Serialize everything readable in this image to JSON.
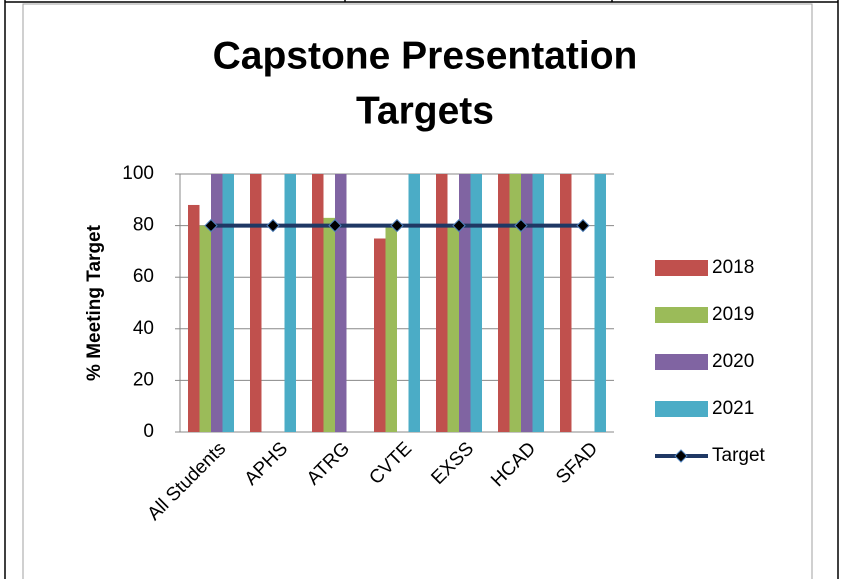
{
  "chart_data": {
    "type": "bar",
    "title": [
      "Capstone Presentation",
      "Targets"
    ],
    "y_label": "% Meeting Target",
    "categories": [
      "All Students",
      "APHS",
      "ATRG",
      "CVTE",
      "EXSS",
      "HCAD",
      "SFAD"
    ],
    "series": [
      {
        "name": "2018",
        "color": "#c0504d",
        "values": [
          88,
          100,
          100,
          75,
          100,
          100,
          100
        ]
      },
      {
        "name": "2019",
        "color": "#9bbb59",
        "values": [
          80,
          null,
          83,
          80,
          80,
          100,
          null
        ]
      },
      {
        "name": "2020",
        "color": "#8064a2",
        "values": [
          100,
          null,
          100,
          null,
          100,
          100,
          null
        ]
      },
      {
        "name": "2021",
        "color": "#4bacc6",
        "values": [
          100,
          100,
          null,
          100,
          100,
          100,
          100
        ]
      },
      {
        "name": "Target",
        "type": "line",
        "color": "#1f3864",
        "values": [
          80,
          80,
          80,
          80,
          80,
          80,
          80
        ]
      }
    ],
    "ylim": [
      0,
      100
    ],
    "yticks": [
      0,
      20,
      40,
      60,
      80,
      100
    ],
    "grid": true,
    "legend": "right"
  }
}
